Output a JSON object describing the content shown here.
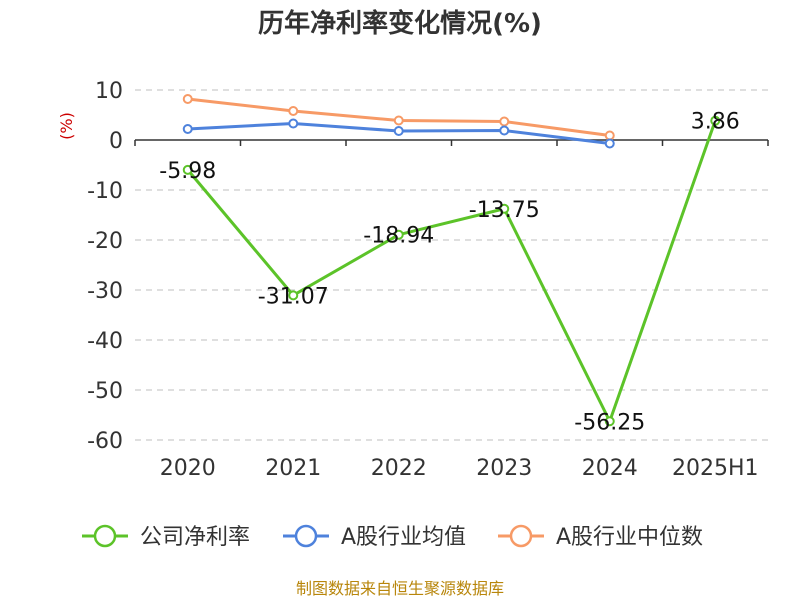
{
  "chart_data": {
    "type": "line",
    "title": "历年净利率变化情况(%)",
    "ylabel": "(%)",
    "xlabel": "",
    "categories": [
      "2020",
      "2021",
      "2022",
      "2023",
      "2024",
      "2025H1"
    ],
    "ylim": [
      -60,
      10
    ],
    "yticks": [
      10,
      0,
      -10,
      -20,
      -30,
      -40,
      -50,
      -60
    ],
    "grid": true,
    "legend_position": "bottom",
    "series": [
      {
        "name": "公司净利率",
        "color": "#5cc329",
        "values": [
          -5.98,
          -31.07,
          -18.94,
          -13.75,
          -56.25,
          3.86
        ],
        "labels": [
          "-5.98",
          "-31.07",
          "-18.94",
          "-13.75",
          "-56.25",
          "3.86"
        ]
      },
      {
        "name": "A股行业均值",
        "color": "#4e82dc",
        "values": [
          2.2,
          3.3,
          1.8,
          1.9,
          -0.7,
          null
        ]
      },
      {
        "name": "A股行业中位数",
        "color": "#f79a66",
        "values": [
          8.2,
          5.8,
          3.9,
          3.7,
          0.9,
          null
        ]
      }
    ]
  },
  "footer": {
    "source": "制图数据来自恒生聚源数据库"
  }
}
